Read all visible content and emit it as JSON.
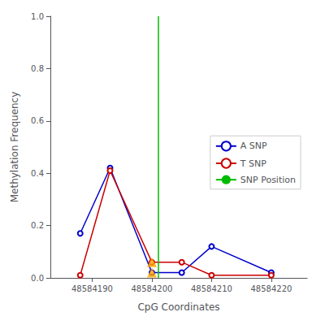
{
  "chart_data": {
    "type": "line",
    "xlabel": "CpG Coordinates",
    "ylabel": "Methylation Frequency",
    "x": [
      48584188,
      48584193,
      48584200,
      48584205,
      48584210,
      48584220
    ],
    "series": [
      {
        "name": "A SNP",
        "color": "#0000CC",
        "marker": "circle",
        "values": [
          0.17,
          0.42,
          0.02,
          0.02,
          0.12,
          0.02
        ]
      },
      {
        "name": "T SNP",
        "color": "#CC0000",
        "marker": "circle",
        "values": [
          0.01,
          0.41,
          0.06,
          0.06,
          0.01,
          0.01
        ]
      }
    ],
    "vline": {
      "name": "SNP Position",
      "x": 48584201,
      "color": "#00BB00"
    },
    "triangles": {
      "x": [
        48584200,
        48584200
      ],
      "y": [
        0.06,
        0.02
      ],
      "color": "#FFA500",
      "marker": "triangle"
    },
    "xlim": [
      48584183,
      48584226
    ],
    "xticks": [
      48584190,
      48584200,
      48584210,
      48584220
    ],
    "ylim": [
      0.0,
      1.0
    ],
    "yticks": [
      {
        "value": 0,
        "label": "0.0"
      },
      0.2,
      0.4,
      0.6,
      0.8,
      {
        "value": 1,
        "label": "1.0"
      }
    ],
    "grid": false,
    "legend": "center right"
  }
}
